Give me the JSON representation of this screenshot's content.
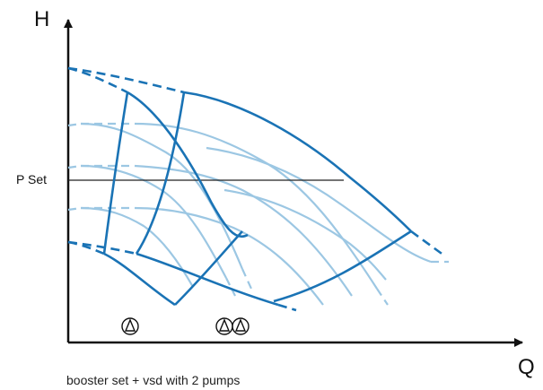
{
  "axes": {
    "y_label": "H",
    "x_label": "Q"
  },
  "setpoint_label": "P Set",
  "caption": "booster set + vsd with 2 pumps",
  "pump_symbols": {
    "single_count": 1,
    "double_count": 2
  },
  "colors": {
    "axis": "#111111",
    "curve_dark": "#1a73b5",
    "curve_light": "#9cc7e3",
    "setpoint_line": "#222222"
  }
}
